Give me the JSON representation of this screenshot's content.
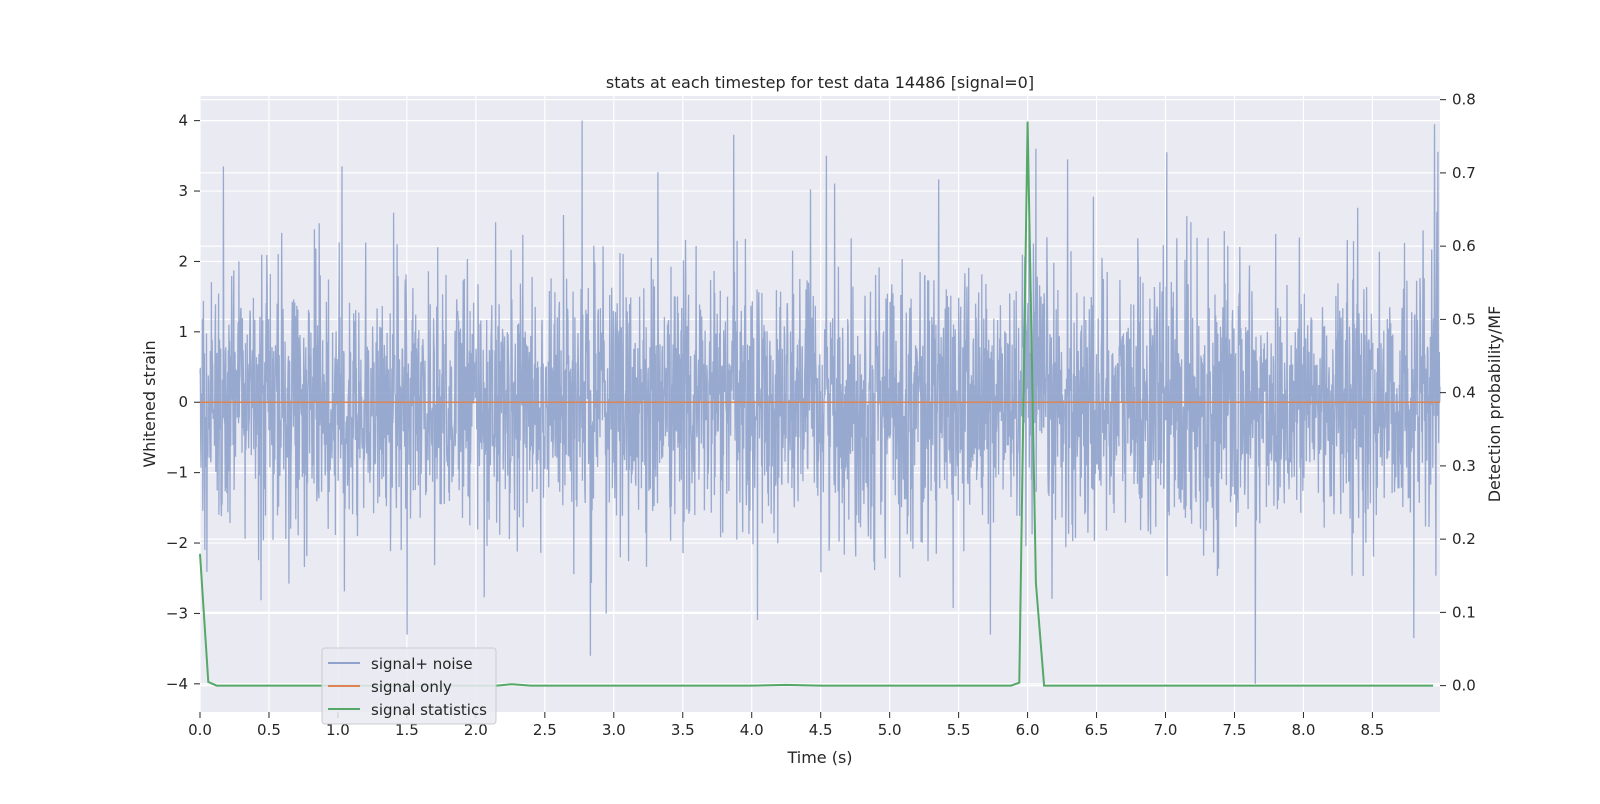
{
  "chart_data": {
    "type": "line",
    "title": "stats at each timestep for test data 14486 [signal=0]",
    "xlabel": "Time (s)",
    "ylabel": "Whitened strain",
    "ylabel_right": "Detection probability/MF",
    "xlim": [
      0.0,
      8.99
    ],
    "ylim": [
      -4.4,
      4.35
    ],
    "ylim_right": [
      -0.036,
      0.805
    ],
    "x_ticks": [
      0.0,
      0.5,
      1.0,
      1.5,
      2.0,
      2.5,
      3.0,
      3.5,
      4.0,
      4.5,
      5.0,
      5.5,
      6.0,
      6.5,
      7.0,
      7.5,
      8.0,
      8.5
    ],
    "x_tick_labels": [
      "0.0",
      "0.5",
      "1.0",
      "1.5",
      "2.0",
      "2.5",
      "3.0",
      "3.5",
      "4.0",
      "4.5",
      "5.0",
      "5.5",
      "6.0",
      "6.5",
      "7.0",
      "7.5",
      "8.0",
      "8.5"
    ],
    "y_ticks": [
      4,
      3,
      2,
      1,
      0,
      -1,
      -2,
      -3,
      -4
    ],
    "y_tick_labels": [
      "4",
      "3",
      "2",
      "1",
      "0",
      "−1",
      "−2",
      "−3",
      "−4"
    ],
    "y_ticks_right": [
      0.8,
      0.7,
      0.6,
      0.5,
      0.4,
      0.3,
      0.2,
      0.1,
      0.0
    ],
    "y_tick_labels_right": [
      "0.8",
      "0.7",
      "0.6",
      "0.5",
      "0.4",
      "0.3",
      "0.2",
      "0.1",
      "0.0"
    ],
    "grid": true,
    "legend_position": "lower-left",
    "series": [
      {
        "name": "signal+ noise",
        "axis": "left",
        "color": "#8fa2cb",
        "kind": "noise",
        "noise_std": 0.93,
        "noise_range": [
          -4.0,
          4.0
        ],
        "sample_count": 3600,
        "peaks": [
          {
            "x": 0.17,
            "y": 3.35
          },
          {
            "x": 1.03,
            "y": 3.35
          },
          {
            "x": 2.77,
            "y": 4.0
          },
          {
            "x": 3.87,
            "y": 3.8
          },
          {
            "x": 4.54,
            "y": 3.5
          },
          {
            "x": 6.06,
            "y": 3.6
          },
          {
            "x": 6.29,
            "y": 3.45
          },
          {
            "x": 7.01,
            "y": 3.55
          },
          {
            "x": 8.95,
            "y": 3.95
          },
          {
            "x": 1.5,
            "y": -3.3
          },
          {
            "x": 2.83,
            "y": -3.6
          },
          {
            "x": 5.73,
            "y": -3.3
          },
          {
            "x": 7.65,
            "y": -4.0
          },
          {
            "x": 8.8,
            "y": -3.35
          }
        ]
      },
      {
        "name": "signal only",
        "axis": "left",
        "color": "#dd8452",
        "x": [
          0.0,
          8.99
        ],
        "y": [
          0.0,
          0.0
        ]
      },
      {
        "name": "signal statistics",
        "axis": "right",
        "color": "#55a868",
        "x": [
          0.0,
          0.06,
          0.12,
          0.25,
          1.0,
          1.5,
          2.0,
          2.15,
          2.26,
          2.4,
          3.0,
          4.0,
          4.25,
          4.5,
          5.0,
          5.5,
          5.88,
          5.94,
          6.0,
          6.06,
          6.12,
          6.18,
          7.0,
          8.0,
          8.94
        ],
        "y": [
          0.18,
          0.005,
          0.0,
          0.0,
          0.0,
          0.0,
          0.0,
          0.0,
          0.002,
          0.0,
          0.0,
          0.0,
          0.001,
          0.0,
          0.0,
          0.0,
          0.0,
          0.004,
          0.77,
          0.14,
          0.0,
          0.0,
          0.0,
          0.0,
          0.0
        ]
      }
    ]
  }
}
